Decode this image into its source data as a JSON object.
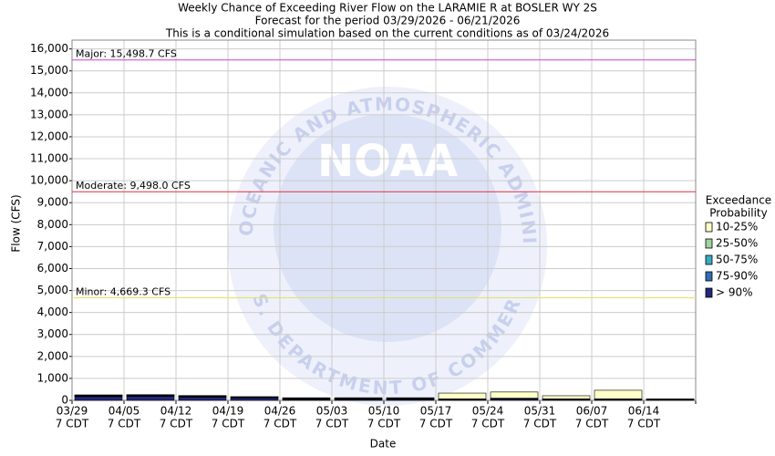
{
  "chart_data": {
    "type": "stacked-bar",
    "title": [
      "Weekly Chance of Exceeding River Flow on the LARAMIE R at BOSLER WY 2S",
      "Forecast for the period 03/29/2026 - 06/21/2026",
      "This is a conditional simulation based on the current conditions as of 03/24/2026"
    ],
    "x_label": "Date",
    "y_label": "Flow (CFS)",
    "categories": [
      "03/29",
      "04/05",
      "04/12",
      "04/19",
      "04/26",
      "05/03",
      "05/10",
      "05/17",
      "05/24",
      "05/31",
      "06/07",
      "06/14"
    ],
    "category_suffix": "7 CDT",
    "series": [
      {
        "name": "> 90%",
        "color": "#23287a",
        "values": [
          170,
          180,
          140,
          110,
          40,
          40,
          40,
          30,
          60,
          30,
          30,
          30
        ]
      },
      {
        "name": "75-90%",
        "color": "#2f6db5",
        "values": [
          20,
          20,
          20,
          15,
          20,
          20,
          20,
          10,
          10,
          10,
          10,
          10
        ]
      },
      {
        "name": "50-75%",
        "color": "#3aaac0",
        "values": [
          20,
          20,
          20,
          15,
          20,
          20,
          20,
          10,
          10,
          10,
          10,
          10
        ]
      },
      {
        "name": "25-50%",
        "color": "#9fd3a0",
        "values": [
          20,
          20,
          20,
          15,
          20,
          20,
          20,
          20,
          20,
          20,
          20,
          10
        ]
      },
      {
        "name": "10-25%",
        "color": "#ffffc8",
        "values": [
          20,
          20,
          20,
          15,
          20,
          20,
          20,
          260,
          280,
          140,
          390,
          10
        ]
      }
    ],
    "ylim": [
      0,
      16400
    ],
    "yticks": [
      0,
      {
        "value": 1000,
        "label": "1,000"
      },
      {
        "value": 2000,
        "label": "2,000"
      },
      {
        "value": 3000,
        "label": "3,000"
      },
      {
        "value": 4000,
        "label": "4,000"
      },
      {
        "value": 5000,
        "label": "5,000"
      },
      {
        "value": 6000,
        "label": "6,000"
      },
      {
        "value": 7000,
        "label": "7,000"
      },
      {
        "value": 8000,
        "label": "8,000"
      },
      {
        "value": 9000,
        "label": "9,000"
      },
      {
        "value": 10000,
        "label": "10,000"
      },
      {
        "value": 11000,
        "label": "11,000"
      },
      {
        "value": 12000,
        "label": "12,000"
      },
      {
        "value": 13000,
        "label": "13,000"
      },
      {
        "value": 14000,
        "label": "14,000"
      },
      {
        "value": 15000,
        "label": "15,000"
      },
      {
        "value": 16000,
        "label": "16,000"
      }
    ],
    "grid": true,
    "thresholds": [
      {
        "value": 15498.7,
        "label": "Major: 15,498.7 CFS",
        "color": "#d040d0"
      },
      {
        "value": 9498.0,
        "label": "Moderate: 9,498.0 CFS",
        "color": "#e03040"
      },
      {
        "value": 4669.3,
        "label": "Minor: 4,669.3 CFS",
        "color": "#e8e060"
      }
    ],
    "legend_title": [
      "Exceedance",
      "Probability"
    ],
    "watermark": {
      "top": "NATIONAL OCEANIC AND ATMOSPHERIC ADMINISTRATION",
      "bottom": "U.S. DEPARTMENT OF COMMERCE",
      "center": "NOAA"
    }
  }
}
